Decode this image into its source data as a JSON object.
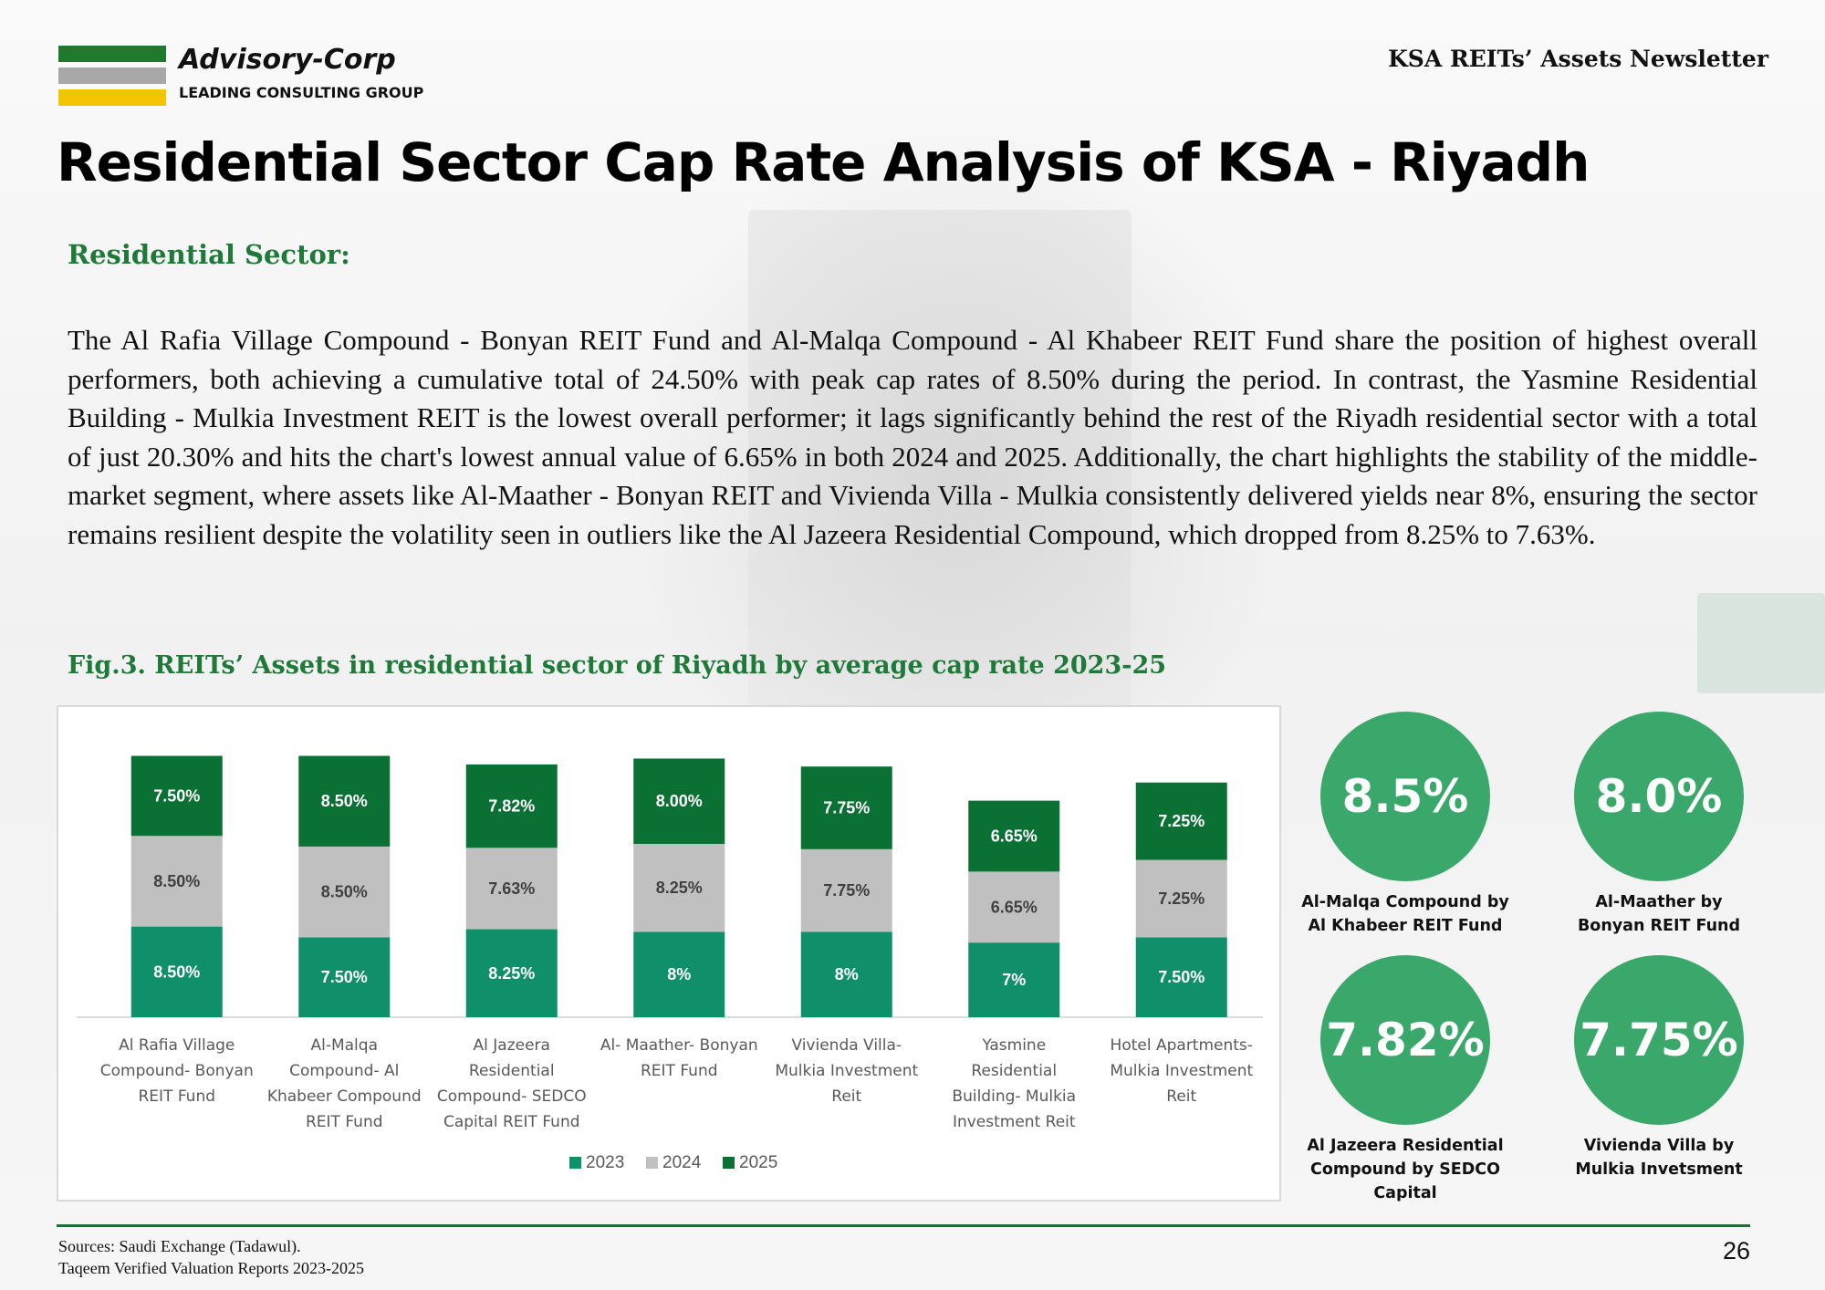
{
  "brand": {
    "name": "Advisory-Corp",
    "tagline": "LEADING CONSULTING GROUP",
    "bar_colors": [
      "#1f7a2e",
      "#a8a8a8",
      "#f5c400"
    ]
  },
  "header": {
    "newsletter": "KSA REITs’ Assets Newsletter"
  },
  "title": "Residential Sector Cap Rate Analysis of KSA - Riyadh",
  "section_heading": "Residential Sector:",
  "paragraph": "The Al Rafia Village Compound - Bonyan REIT Fund and Al-Malqa Compound - Al Khabeer REIT Fund share the position of highest overall performers, both achieving a cumulative total of 24.50% with peak cap rates of 8.50% during the period. In contrast, the Yasmine Residential Building - Mulkia Investment REIT is the lowest overall performer; it lags significantly behind the rest of the Riyadh residential sector with a total of just 20.30% and hits the chart's lowest annual value of 6.65% in both 2024 and 2025. Additionally, the chart highlights the stability of the middle-market segment, where assets like Al-Maather - Bonyan REIT and Vivienda Villa - Mulkia consistently delivered yields near 8%, ensuring the sector remains resilient despite the volatility seen in outliers like the Al Jazeera Residential Compound, which dropped from 8.25% to 7.63%.",
  "figure_caption": "Fig.3. REITs’ Assets in residential sector of Riyadh by average cap rate 2023-25",
  "chart_data": {
    "type": "bar",
    "stacked": true,
    "categories": [
      [
        "Al Rafia Village",
        "Compound- Bonyan",
        "REIT Fund"
      ],
      [
        "Al-Malqa",
        "Compound- Al",
        "Khabeer Compound",
        "REIT Fund"
      ],
      [
        "Al Jazeera",
        "Residential",
        "Compound- SEDCO",
        "Capital REIT Fund"
      ],
      [
        "Al- Maather- Bonyan",
        "REIT Fund"
      ],
      [
        "Vivienda Villa-",
        "Mulkia Investment",
        "Reit"
      ],
      [
        "Yasmine",
        "Residential",
        "Building- Mulkia",
        "Investment Reit"
      ],
      [
        "Hotel Apartments-",
        "Mulkia Investment",
        "Reit"
      ]
    ],
    "series": [
      {
        "name": "2023",
        "color": "#0f8f6a",
        "text_color": "#ffffff",
        "values": [
          8.5,
          7.5,
          8.25,
          8.0,
          8.0,
          7.0,
          7.5
        ],
        "labels": [
          "8.50%",
          "7.50%",
          "8.25%",
          "8%",
          "8%",
          "7%",
          "7.50%"
        ]
      },
      {
        "name": "2024",
        "color": "#c0c0c0",
        "text_color": "#404040",
        "values": [
          8.5,
          8.5,
          7.63,
          8.25,
          7.75,
          6.65,
          7.25
        ],
        "labels": [
          "8.50%",
          "8.50%",
          "7.63%",
          "8.25%",
          "7.75%",
          "6.65%",
          "7.25%"
        ]
      },
      {
        "name": "2025",
        "color": "#0b7034",
        "text_color": "#ffffff",
        "values": [
          7.5,
          8.5,
          7.82,
          8.0,
          7.75,
          6.65,
          7.25
        ],
        "labels": [
          "7.50%",
          "8.50%",
          "7.82%",
          "8.00%",
          "7.75%",
          "6.65%",
          "7.25%"
        ]
      }
    ],
    "ylim": [
      0,
      26
    ],
    "grid": false,
    "legend": "bottom"
  },
  "highlights": [
    {
      "value": "8.5%",
      "label": "Al-Malqa Compound by\nAl Khabeer REIT Fund"
    },
    {
      "value": "8.0%",
      "label": "Al-Maather by\nBonyan REIT Fund"
    },
    {
      "value": "7.82%",
      "label": "Al Jazeera Residential\nCompound by SEDCO\nCapital"
    },
    {
      "value": "7.75%",
      "label": "Vivienda Villa by\nMulkia Invetsment"
    }
  ],
  "footer": {
    "sources_line1": "Sources: Saudi Exchange (Tadawul).",
    "sources_line2": "Taqeem Verified Valuation Reports 2023-2025",
    "page_number": "26"
  }
}
